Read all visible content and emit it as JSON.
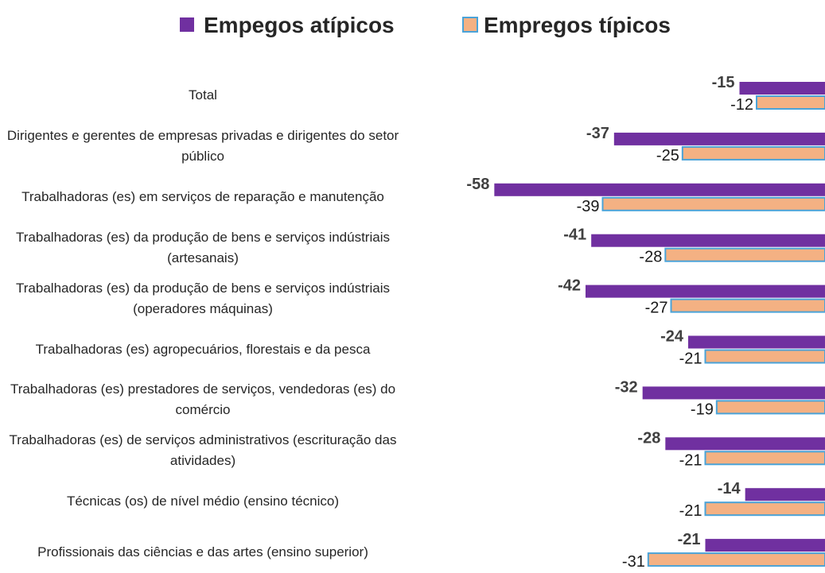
{
  "chart_data": {
    "type": "hbar",
    "categories": [
      "Total",
      "Dirigentes e gerentes de empresas privadas e dirigentes do setor público",
      "Trabalhadoras (es) em serviços de reparação e manutenção",
      "Trabalhadoras (es) da produção de bens e serviços indústriais (artesanais)",
      "Trabalhadoras (es) da produção de bens e serviços indústriais (operadores máquinas)",
      "Trabalhadoras (es) agropecuários, florestais e da pesca",
      "Trabalhadoras (es) prestadores de serviços, vendedoras (es) do comércio",
      "Trabalhadoras (es) de serviços administrativos (escrituração das atividades)",
      "Técnicas (os) de nível médio (ensino técnico)",
      "Profissionais das ciências e das artes (ensino superior)"
    ],
    "series": [
      {
        "name": "Empegos atípicos",
        "color": "#7030a0",
        "values": [
          -15,
          -37,
          -58,
          -41,
          -42,
          -24,
          -32,
          -28,
          -14,
          -21
        ]
      },
      {
        "name": "Empregos típicos",
        "color": "#f4b183",
        "border": "#4aa3d8",
        "values": [
          -12,
          -25,
          -39,
          -28,
          -27,
          -21,
          -19,
          -21,
          -21,
          -31
        ]
      }
    ],
    "xlim": [
      -60,
      0
    ],
    "legend": "top"
  }
}
